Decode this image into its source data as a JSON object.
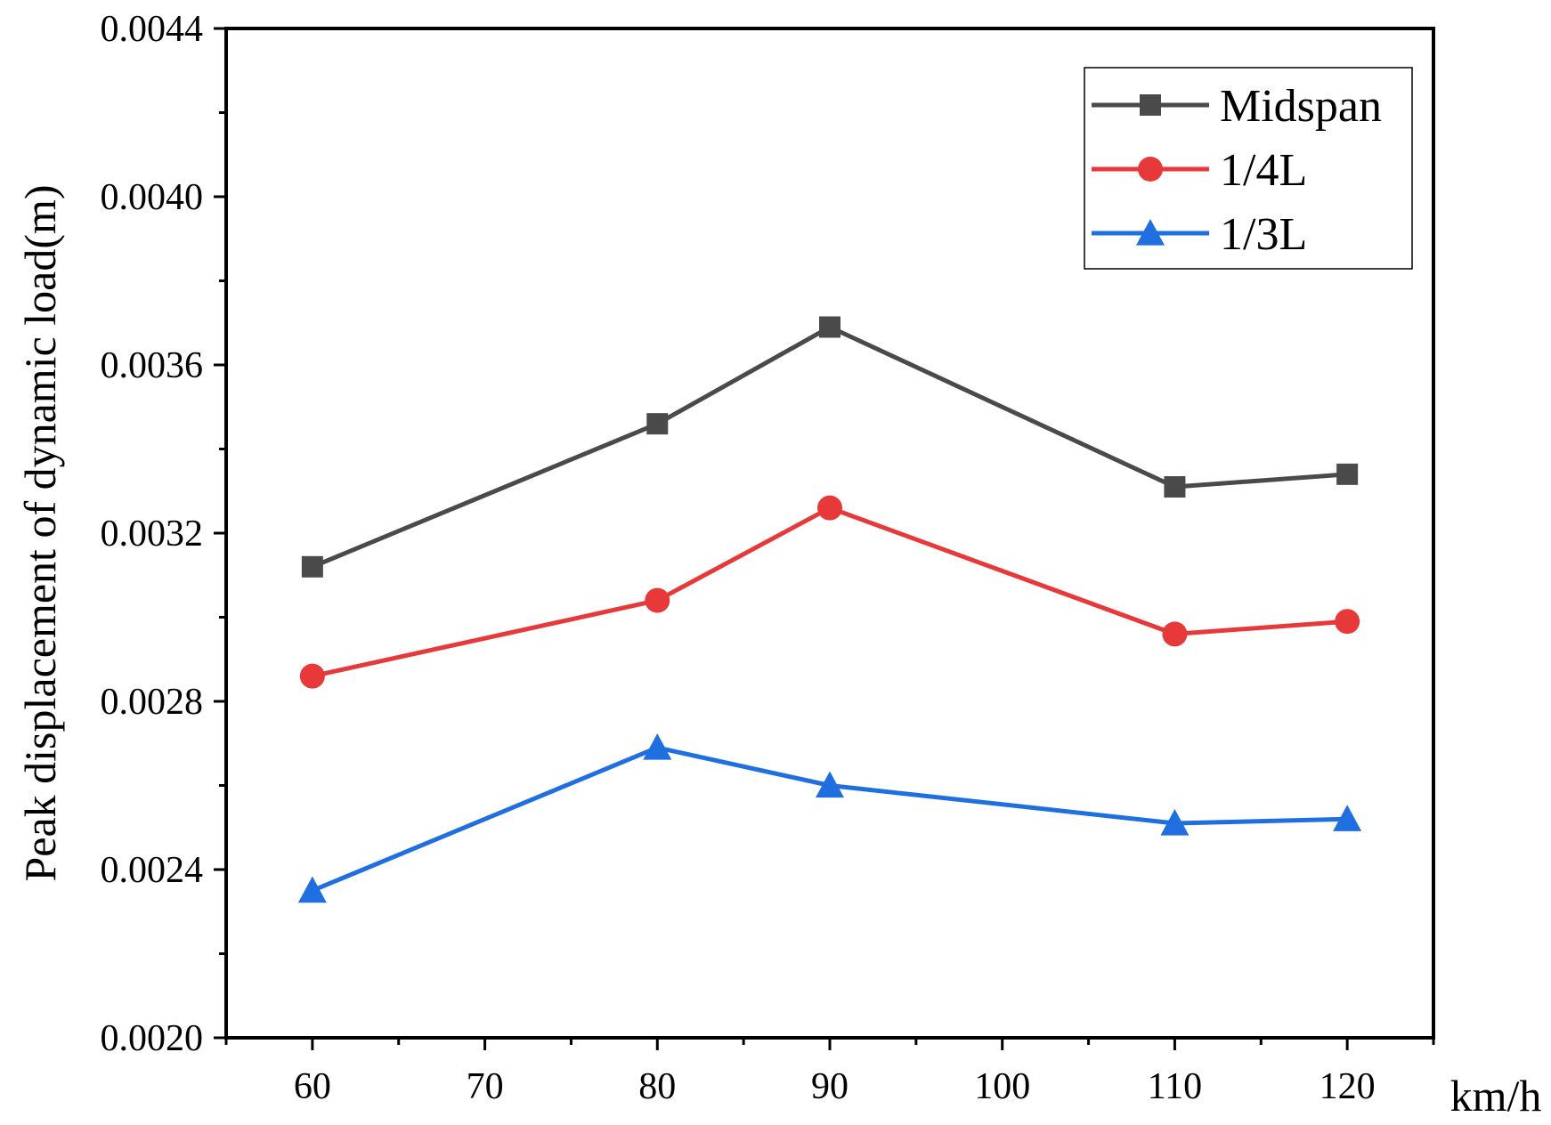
{
  "chart_data": {
    "type": "line",
    "title": "",
    "xlabel": "km/h",
    "ylabel": "Peak displacement of dynamic load(m)",
    "xlim": [
      55,
      125
    ],
    "ylim": [
      0.002,
      0.0044
    ],
    "x_ticks": [
      60,
      70,
      80,
      90,
      100,
      110,
      120
    ],
    "x_tick_labels": [
      "60",
      "70",
      "80",
      "90",
      "100",
      "110",
      "120"
    ],
    "y_ticks": [
      0.002,
      0.0024,
      0.0028,
      0.0032,
      0.0036,
      0.004,
      0.0044
    ],
    "y_tick_labels": [
      "0.0020",
      "0.0024",
      "0.0028",
      "0.0032",
      "0.0036",
      "0.0040",
      "0.0044"
    ],
    "grid": false,
    "legend_position": "top-right",
    "x": [
      60,
      80,
      90,
      110,
      120
    ],
    "series": [
      {
        "name": "Midspan",
        "color": "#4a4a4a",
        "marker": "square",
        "values": [
          0.00312,
          0.00346,
          0.00369,
          0.00331,
          0.00334
        ]
      },
      {
        "name": "1/4L",
        "color": "#e8393a",
        "marker": "circle",
        "values": [
          0.00286,
          0.00304,
          0.00326,
          0.00296,
          0.00299
        ]
      },
      {
        "name": "1/3L",
        "color": "#1f6fe0",
        "marker": "triangle",
        "values": [
          0.00235,
          0.00269,
          0.0026,
          0.00251,
          0.00252
        ]
      }
    ]
  }
}
